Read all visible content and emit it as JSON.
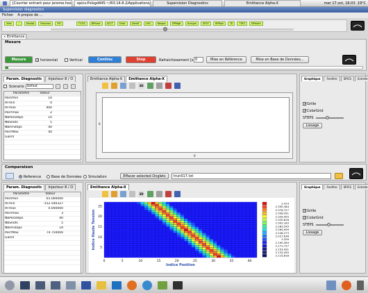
{
  "titlebar": {
    "tabs": [
      "[Courrier entrant pour jerome.hosselet@cea",
      "epics:Pxlsgd445:~/R3.14.8.2/Applications/",
      "Supervision Diagnostics",
      "Emittance Alpha-X"
    ],
    "clock": "mer 17 oct, 16:03",
    "weather": "19°C"
  },
  "window_title": "Supervision diagnostics",
  "menu": [
    "Fichier",
    "A propos de ..."
  ],
  "status_chips": [
    "Vide",
    "...",
    "Radiat",
    "Faisceau",
    "RFI",
    "TOOS",
    "BPhase",
    "ACCT",
    "Dmtr",
    "DemR",
    "LIHC",
    "Baspec",
    "BPMgtr",
    "Ecmgm",
    "SFDT",
    "BPMph",
    "TE",
    "TEE2",
    "BPmdm"
  ],
  "emittance_tab": "Emittance",
  "mesure": {
    "title": "Mesure",
    "mesure_btn": "Mesure",
    "horizontal": "horizontal",
    "vertical": "Vertical",
    "continu_btn": "Continu",
    "stop_btn": "Stop",
    "rafraich_label": "Rafraichissement [s]",
    "rafraich_value": "0",
    "mise_ref_btn": "Mise en Référence",
    "mise_bdd_btn": "Mise en Base de Données..."
  },
  "left_tabs": [
    "Param. Diagnostic",
    "Injecteur 8 / O"
  ],
  "scenario_label": "Scenario",
  "scenario_value": "Defaut",
  "param_headers": [
    "Paramètre",
    "Valeur"
  ],
  "params_top": [
    {
      "name": "PosVmin",
      "value": "10"
    },
    {
      "name": "HFmin",
      "value": "0"
    },
    {
      "name": "HFmax",
      "value": "400"
    },
    {
      "name": "PosYmax",
      "value": "2"
    },
    {
      "name": "NbPosSteps",
      "value": "10"
    },
    {
      "name": "NbShots",
      "value": "5"
    },
    {
      "name": "NbHFSteps",
      "value": "40"
    },
    {
      "name": "PosYMax",
      "value": "40"
    },
    {
      "name": "GainV",
      "value": ""
    }
  ],
  "plot_tabs": [
    "Emittance Alpha-X",
    "Emittance Alpha-X"
  ],
  "side_tabs": [
    "Graphique",
    "Fenêtre",
    "SPICS",
    "Echelle"
  ],
  "side_opts": {
    "grille": "Grille",
    "colorgrid": "ColorGrid",
    "steps": "STEPS",
    "lissage": "Lissage"
  },
  "plot_top": {
    "y_tick": "0",
    "x_tick": "0"
  },
  "comparaison": {
    "title": "Comparaison",
    "reference": "Reference",
    "bdd": "Base de Données",
    "simulation": "Simulation",
    "effacer_btn": "Effacer selected Onglets",
    "file_value": "trun017.txt"
  },
  "params_bottom": [
    {
      "name": "PosVmin",
      "value": "65.000000"
    },
    {
      "name": "HFmin",
      "value": "-152.540327"
    },
    {
      "name": "HFmax",
      "value": "0.000000"
    },
    {
      "name": "PosYmax",
      "value": "3"
    },
    {
      "name": "NbPosSteps",
      "value": "40"
    },
    {
      "name": "NbShots",
      "value": "5"
    },
    {
      "name": "NbHFSteps",
      "value": "19"
    },
    {
      "name": "PosYMax",
      "value": "74.750000"
    },
    {
      "name": "GainV",
      "value": ""
    }
  ],
  "heatmap_tab": "Emittance Alpha-X",
  "chart_data": {
    "type": "heatmap",
    "title": "",
    "xlabel": "Indice Position",
    "ylabel": "Indice Haute Tension",
    "xlim": [
      0,
      42
    ],
    "ylim": [
      0,
      27
    ],
    "x_ticks": [
      "0",
      "5",
      "10",
      "15",
      "20",
      "25",
      "30",
      "35",
      "40"
    ],
    "y_ticks": [
      "5",
      "10",
      "15",
      "20",
      "25"
    ],
    "colorscale_labels": [
      "2.414",
      "2.395,364",
      "2.376,727",
      "2.358,091",
      "2.339,455",
      "2.320,818",
      "2.302,183",
      "2.283,545",
      "2.264,909",
      "2.246,273",
      "2.227,636",
      "2.209",
      "2.190,364",
      "2.171,727",
      "2.153,091",
      "2.134,455",
      "2.115,818"
    ],
    "ridge": {
      "x_at_y0": 31,
      "x_at_ymax": 13,
      "width": 4.5
    }
  }
}
